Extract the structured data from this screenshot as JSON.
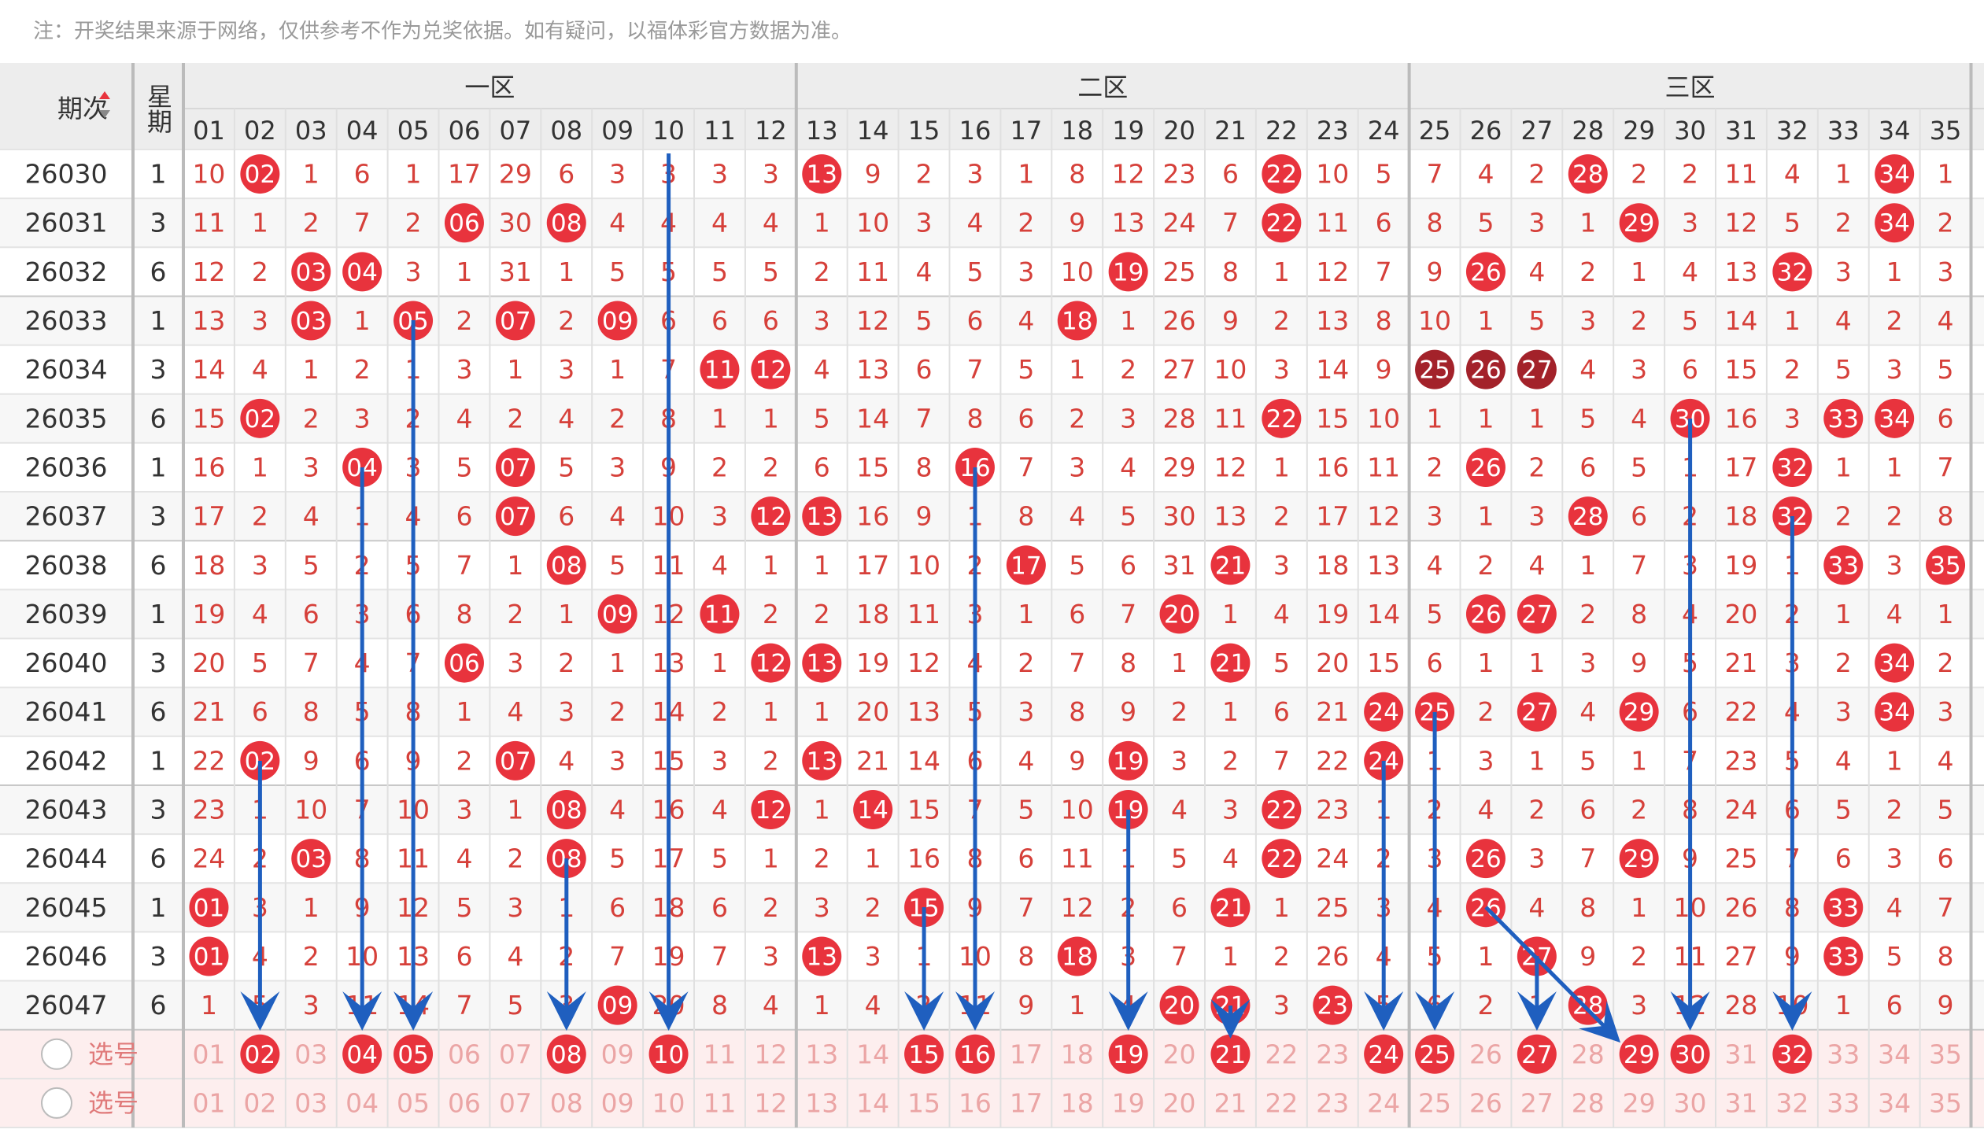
{
  "note": "注：开奖结果来源于网络，仅供参考不作为兑奖依据。如有疑问，以福体彩官方数据为准。",
  "header": {
    "period": "期次",
    "weekday": "星期"
  },
  "zones": [
    {
      "label": "一区",
      "columns": [
        "01",
        "02",
        "03",
        "04",
        "05",
        "06",
        "07",
        "08",
        "09",
        "10",
        "11",
        "12"
      ]
    },
    {
      "label": "二区",
      "columns": [
        "13",
        "14",
        "15",
        "16",
        "17",
        "18",
        "19",
        "20",
        "21",
        "22",
        "23",
        "24"
      ]
    },
    {
      "label": "三区",
      "columns": [
        "25",
        "26",
        "27",
        "28",
        "29",
        "30",
        "31",
        "32",
        "33",
        "34",
        "35"
      ]
    }
  ],
  "rows": [
    {
      "period": "26030",
      "weekday": "1",
      "cells": [
        "10",
        {
          "ball": "02"
        },
        "1",
        "6",
        "1",
        "17",
        "29",
        "6",
        "3",
        "3",
        "3",
        "3",
        {
          "ball": "13"
        },
        "9",
        "2",
        "3",
        "1",
        "8",
        "12",
        "23",
        "6",
        {
          "ball": "22"
        },
        "10",
        "5",
        "7",
        "4",
        "2",
        {
          "ball": "28"
        },
        "2",
        "2",
        "11",
        "4",
        "1",
        {
          "ball": "34"
        },
        "1"
      ]
    },
    {
      "period": "26031",
      "weekday": "3",
      "cells": [
        "11",
        "1",
        "2",
        "7",
        "2",
        {
          "ball": "06"
        },
        "30",
        {
          "ball": "08"
        },
        "4",
        "4",
        "4",
        "4",
        "1",
        "10",
        "3",
        "4",
        "2",
        "9",
        "13",
        "24",
        "7",
        {
          "ball": "22"
        },
        "11",
        "6",
        "8",
        "5",
        "3",
        "1",
        {
          "ball": "29"
        },
        "3",
        "12",
        "5",
        "2",
        {
          "ball": "34"
        },
        "2"
      ]
    },
    {
      "period": "26032",
      "weekday": "6",
      "cells": [
        "12",
        "2",
        {
          "ball": "03"
        },
        {
          "ball": "04"
        },
        "3",
        "1",
        "31",
        "1",
        "5",
        "5",
        "5",
        "5",
        "2",
        "11",
        "4",
        "5",
        "3",
        "10",
        {
          "ball": "19"
        },
        "25",
        "8",
        "1",
        "12",
        "7",
        "9",
        {
          "ball": "26"
        },
        "4",
        "2",
        "1",
        "4",
        "13",
        {
          "ball": "32"
        },
        "3",
        "1",
        "3"
      ]
    },
    {
      "period": "26033",
      "weekday": "1",
      "cells": [
        "13",
        "3",
        {
          "ball": "03"
        },
        "1",
        {
          "ball": "05"
        },
        "2",
        {
          "ball": "07"
        },
        "2",
        {
          "ball": "09"
        },
        "6",
        "6",
        "6",
        "3",
        "12",
        "5",
        "6",
        "4",
        {
          "ball": "18"
        },
        "1",
        "26",
        "9",
        "2",
        "13",
        "8",
        "10",
        "1",
        "5",
        "3",
        "2",
        "5",
        "14",
        "1",
        "4",
        "2",
        "4"
      ]
    },
    {
      "period": "26034",
      "weekday": "3",
      "cells": [
        "14",
        "4",
        "1",
        "2",
        "1",
        "3",
        "1",
        "3",
        "1",
        "7",
        {
          "ball": "11"
        },
        {
          "ball": "12"
        },
        "4",
        "13",
        "6",
        "7",
        "5",
        "1",
        "2",
        "27",
        "10",
        "3",
        "14",
        "9",
        {
          "ball": "25",
          "tone": "dark"
        },
        {
          "ball": "26",
          "tone": "dark"
        },
        {
          "ball": "27",
          "tone": "dark"
        },
        "4",
        "3",
        "6",
        "15",
        "2",
        "5",
        "3",
        "5"
      ]
    },
    {
      "period": "26035",
      "weekday": "6",
      "cells": [
        "15",
        {
          "ball": "02"
        },
        "2",
        "3",
        "2",
        "4",
        "2",
        "4",
        "2",
        "8",
        "1",
        "1",
        "5",
        "14",
        "7",
        "8",
        "6",
        "2",
        "3",
        "28",
        "11",
        {
          "ball": "22"
        },
        "15",
        "10",
        "1",
        "1",
        "1",
        "5",
        "4",
        {
          "ball": "30"
        },
        "16",
        "3",
        {
          "ball": "33"
        },
        {
          "ball": "34"
        },
        "6"
      ]
    },
    {
      "period": "26036",
      "weekday": "1",
      "cells": [
        "16",
        "1",
        "3",
        {
          "ball": "04"
        },
        "3",
        "5",
        {
          "ball": "07"
        },
        "5",
        "3",
        "9",
        "2",
        "2",
        "6",
        "15",
        "8",
        {
          "ball": "16"
        },
        "7",
        "3",
        "4",
        "29",
        "12",
        "1",
        "16",
        "11",
        "2",
        {
          "ball": "26"
        },
        "2",
        "6",
        "5",
        "1",
        "17",
        {
          "ball": "32"
        },
        "1",
        "1",
        "7"
      ]
    },
    {
      "period": "26037",
      "weekday": "3",
      "cells": [
        "17",
        "2",
        "4",
        "1",
        "4",
        "6",
        {
          "ball": "07"
        },
        "6",
        "4",
        "10",
        "3",
        {
          "ball": "12"
        },
        {
          "ball": "13"
        },
        "16",
        "9",
        "1",
        "8",
        "4",
        "5",
        "30",
        "13",
        "2",
        "17",
        "12",
        "3",
        "1",
        "3",
        {
          "ball": "28"
        },
        "6",
        "2",
        "18",
        {
          "ball": "32"
        },
        "2",
        "2",
        "8"
      ]
    },
    {
      "period": "26038",
      "weekday": "6",
      "cells": [
        "18",
        "3",
        "5",
        "2",
        "5",
        "7",
        "1",
        {
          "ball": "08"
        },
        "5",
        "11",
        "4",
        "1",
        "1",
        "17",
        "10",
        "2",
        {
          "ball": "17"
        },
        "5",
        "6",
        "31",
        {
          "ball": "21"
        },
        "3",
        "18",
        "13",
        "4",
        "2",
        "4",
        "1",
        "7",
        "3",
        "19",
        "1",
        {
          "ball": "33"
        },
        "3",
        {
          "ball": "35"
        }
      ]
    },
    {
      "period": "26039",
      "weekday": "1",
      "cells": [
        "19",
        "4",
        "6",
        "3",
        "6",
        "8",
        "2",
        "1",
        {
          "ball": "09"
        },
        "12",
        {
          "ball": "11"
        },
        "2",
        "2",
        "18",
        "11",
        "3",
        "1",
        "6",
        "7",
        {
          "ball": "20"
        },
        "1",
        "4",
        "19",
        "14",
        "5",
        {
          "ball": "26"
        },
        {
          "ball": "27"
        },
        "2",
        "8",
        "4",
        "20",
        "2",
        "1",
        "4",
        "1"
      ]
    },
    {
      "period": "26040",
      "weekday": "3",
      "cells": [
        "20",
        "5",
        "7",
        "4",
        "7",
        {
          "ball": "06"
        },
        "3",
        "2",
        "1",
        "13",
        "1",
        {
          "ball": "12"
        },
        {
          "ball": "13"
        },
        "19",
        "12",
        "4",
        "2",
        "7",
        "8",
        "1",
        {
          "ball": "21"
        },
        "5",
        "20",
        "15",
        "6",
        "1",
        "1",
        "3",
        "9",
        "5",
        "21",
        "3",
        "2",
        {
          "ball": "34"
        },
        "2"
      ]
    },
    {
      "period": "26041",
      "weekday": "6",
      "cells": [
        "21",
        "6",
        "8",
        "5",
        "8",
        "1",
        "4",
        "3",
        "2",
        "14",
        "2",
        "1",
        "1",
        "20",
        "13",
        "5",
        "3",
        "8",
        "9",
        "2",
        "1",
        "6",
        "21",
        {
          "ball": "24"
        },
        {
          "ball": "25"
        },
        "2",
        {
          "ball": "27"
        },
        "4",
        {
          "ball": "29"
        },
        "6",
        "22",
        "4",
        "3",
        {
          "ball": "34"
        },
        "3"
      ]
    },
    {
      "period": "26042",
      "weekday": "1",
      "cells": [
        "22",
        {
          "ball": "02"
        },
        "9",
        "6",
        "9",
        "2",
        {
          "ball": "07"
        },
        "4",
        "3",
        "15",
        "3",
        "2",
        {
          "ball": "13"
        },
        "21",
        "14",
        "6",
        "4",
        "9",
        {
          "ball": "19"
        },
        "3",
        "2",
        "7",
        "22",
        {
          "ball": "24"
        },
        "1",
        "3",
        "1",
        "5",
        "1",
        "7",
        "23",
        "5",
        "4",
        "1",
        "4"
      ]
    },
    {
      "period": "26043",
      "weekday": "3",
      "cells": [
        "23",
        "1",
        "10",
        "7",
        "10",
        "3",
        "1",
        {
          "ball": "08"
        },
        "4",
        "16",
        "4",
        {
          "ball": "12"
        },
        "1",
        {
          "ball": "14"
        },
        "15",
        "7",
        "5",
        "10",
        {
          "ball": "19"
        },
        "4",
        "3",
        {
          "ball": "22"
        },
        "23",
        "1",
        "2",
        "4",
        "2",
        "6",
        "2",
        "8",
        "24",
        "6",
        "5",
        "2",
        "5"
      ]
    },
    {
      "period": "26044",
      "weekday": "6",
      "cells": [
        "24",
        "2",
        {
          "ball": "03"
        },
        "8",
        "11",
        "4",
        "2",
        {
          "ball": "08"
        },
        "5",
        "17",
        "5",
        "1",
        "2",
        "1",
        "16",
        "8",
        "6",
        "11",
        "1",
        "5",
        "4",
        {
          "ball": "22"
        },
        "24",
        "2",
        "3",
        {
          "ball": "26"
        },
        "3",
        "7",
        {
          "ball": "29"
        },
        "9",
        "25",
        "7",
        "6",
        "3",
        "6"
      ]
    },
    {
      "period": "26045",
      "weekday": "1",
      "cells": [
        {
          "ball": "01"
        },
        "3",
        "1",
        "9",
        "12",
        "5",
        "3",
        "1",
        "6",
        "18",
        "6",
        "2",
        "3",
        "2",
        {
          "ball": "15"
        },
        "9",
        "7",
        "12",
        "2",
        "6",
        {
          "ball": "21"
        },
        "1",
        "25",
        "3",
        "4",
        {
          "ball": "26"
        },
        "4",
        "8",
        "1",
        "10",
        "26",
        "8",
        {
          "ball": "33"
        },
        "4",
        "7"
      ]
    },
    {
      "period": "26046",
      "weekday": "3",
      "cells": [
        {
          "ball": "01"
        },
        "4",
        "2",
        "10",
        "13",
        "6",
        "4",
        "2",
        "7",
        "19",
        "7",
        "3",
        {
          "ball": "13"
        },
        "3",
        "1",
        "10",
        "8",
        {
          "ball": "18"
        },
        "3",
        "7",
        "1",
        "2",
        "26",
        "4",
        "5",
        "1",
        {
          "ball": "27"
        },
        "9",
        "2",
        "11",
        "27",
        "9",
        {
          "ball": "33"
        },
        "5",
        "8"
      ]
    },
    {
      "period": "26047",
      "weekday": "6",
      "cells": [
        "1",
        "5",
        "3",
        "11",
        "14",
        "7",
        "5",
        "3",
        {
          "ball": "09"
        },
        "20",
        "8",
        "4",
        "1",
        "4",
        "2",
        "11",
        "9",
        "1",
        "4",
        {
          "ball": "20"
        },
        {
          "ball": "21"
        },
        "3",
        {
          "ball": "23"
        },
        "5",
        "6",
        "2",
        "1",
        {
          "ball": "28"
        },
        "3",
        "12",
        "28",
        "10",
        "1",
        "6",
        "9"
      ]
    }
  ],
  "selection_rows": [
    {
      "label": "选号",
      "picked": [
        "02",
        "04",
        "05",
        "08",
        "10",
        "15",
        "16",
        "19",
        "21",
        "24",
        "25",
        "27",
        "29",
        "30",
        "32"
      ]
    },
    {
      "label": "选号",
      "picked": []
    }
  ]
}
